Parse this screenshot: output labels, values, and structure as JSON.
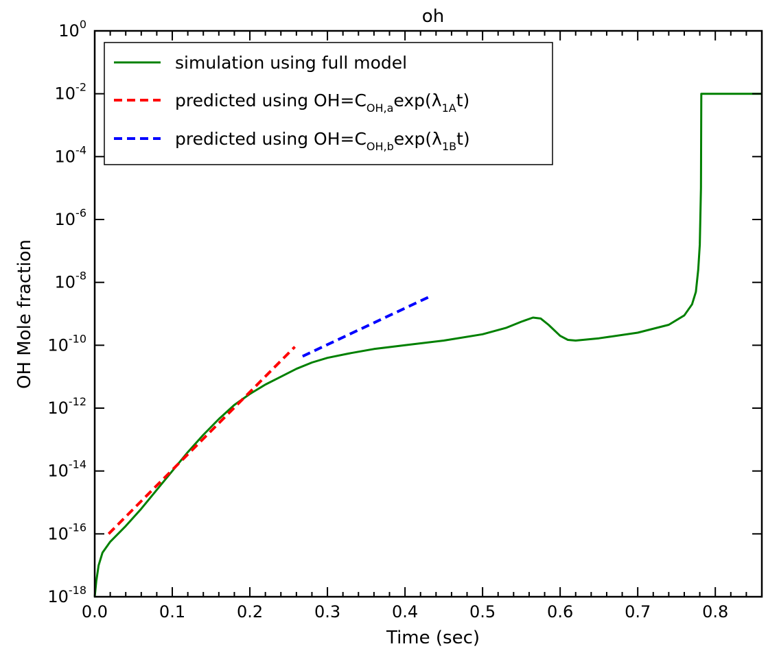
{
  "chart_data": {
    "type": "line",
    "title": "oh",
    "xlabel": "Time (sec)",
    "ylabel": "OH Mole fraction",
    "xlim": [
      0.0,
      0.86
    ],
    "ylim_exponent": [
      -18,
      0
    ],
    "y_scale": "log",
    "x_ticks": [
      "0.0",
      "0.1",
      "0.2",
      "0.3",
      "0.4",
      "0.5",
      "0.6",
      "0.7",
      "0.8"
    ],
    "x_tick_values": [
      0.0,
      0.1,
      0.2,
      0.3,
      0.4,
      0.5,
      0.6,
      0.7,
      0.8
    ],
    "y_ticks": [
      {
        "base": "10",
        "exp": "-18",
        "value": -18
      },
      {
        "base": "10",
        "exp": "-16",
        "value": -16
      },
      {
        "base": "10",
        "exp": "-14",
        "value": -14
      },
      {
        "base": "10",
        "exp": "-12",
        "value": -12
      },
      {
        "base": "10",
        "exp": "-10",
        "value": -10
      },
      {
        "base": "10",
        "exp": "-8",
        "value": -8
      },
      {
        "base": "10",
        "exp": "-6",
        "value": -6
      },
      {
        "base": "10",
        "exp": "-4",
        "value": -4
      },
      {
        "base": "10",
        "exp": "-2",
        "value": -2
      },
      {
        "base": "10",
        "exp": "0",
        "value": 0
      }
    ],
    "grid": false,
    "legend_position": "top-left",
    "series": [
      {
        "color": "#008000",
        "style": "solid",
        "legend": {
          "text": "simulation using full model"
        },
        "points_log10": [
          [
            0.0,
            -18.0
          ],
          [
            0.002,
            -17.5
          ],
          [
            0.005,
            -17.0
          ],
          [
            0.01,
            -16.6
          ],
          [
            0.02,
            -16.25
          ],
          [
            0.04,
            -15.75
          ],
          [
            0.06,
            -15.2
          ],
          [
            0.08,
            -14.6
          ],
          [
            0.1,
            -14.0
          ],
          [
            0.12,
            -13.4
          ],
          [
            0.14,
            -12.85
          ],
          [
            0.16,
            -12.35
          ],
          [
            0.18,
            -11.9
          ],
          [
            0.2,
            -11.55
          ],
          [
            0.22,
            -11.25
          ],
          [
            0.24,
            -11.0
          ],
          [
            0.26,
            -10.75
          ],
          [
            0.28,
            -10.55
          ],
          [
            0.3,
            -10.4
          ],
          [
            0.33,
            -10.25
          ],
          [
            0.36,
            -10.12
          ],
          [
            0.4,
            -10.0
          ],
          [
            0.45,
            -9.85
          ],
          [
            0.5,
            -9.65
          ],
          [
            0.53,
            -9.45
          ],
          [
            0.55,
            -9.25
          ],
          [
            0.565,
            -9.12
          ],
          [
            0.575,
            -9.15
          ],
          [
            0.585,
            -9.35
          ],
          [
            0.6,
            -9.7
          ],
          [
            0.61,
            -9.83
          ],
          [
            0.62,
            -9.85
          ],
          [
            0.65,
            -9.78
          ],
          [
            0.7,
            -9.6
          ],
          [
            0.74,
            -9.35
          ],
          [
            0.76,
            -9.05
          ],
          [
            0.77,
            -8.7
          ],
          [
            0.775,
            -8.3
          ],
          [
            0.778,
            -7.6
          ],
          [
            0.78,
            -6.8
          ],
          [
            0.7815,
            -5.0
          ],
          [
            0.782,
            -2.0
          ],
          [
            0.79,
            -2.0
          ],
          [
            0.86,
            -2.0
          ]
        ]
      },
      {
        "color": "#ff0000",
        "style": "dashed",
        "legend": {
          "prefix": "predicted using OH=C",
          "sub1": "OH,a",
          "mid": "exp(λ",
          "sub2": "1A",
          "suffix": "t)"
        },
        "points_log10": [
          [
            0.018,
            -16.0
          ],
          [
            0.258,
            -10.05
          ]
        ]
      },
      {
        "color": "#0000ff",
        "style": "dashed",
        "legend": {
          "prefix": "predicted using OH=C",
          "sub1": "OH,b",
          "mid": "exp(λ",
          "sub2": "1B",
          "suffix": "t)"
        },
        "points_log10": [
          [
            0.268,
            -10.35
          ],
          [
            0.432,
            -8.45
          ]
        ]
      }
    ]
  }
}
